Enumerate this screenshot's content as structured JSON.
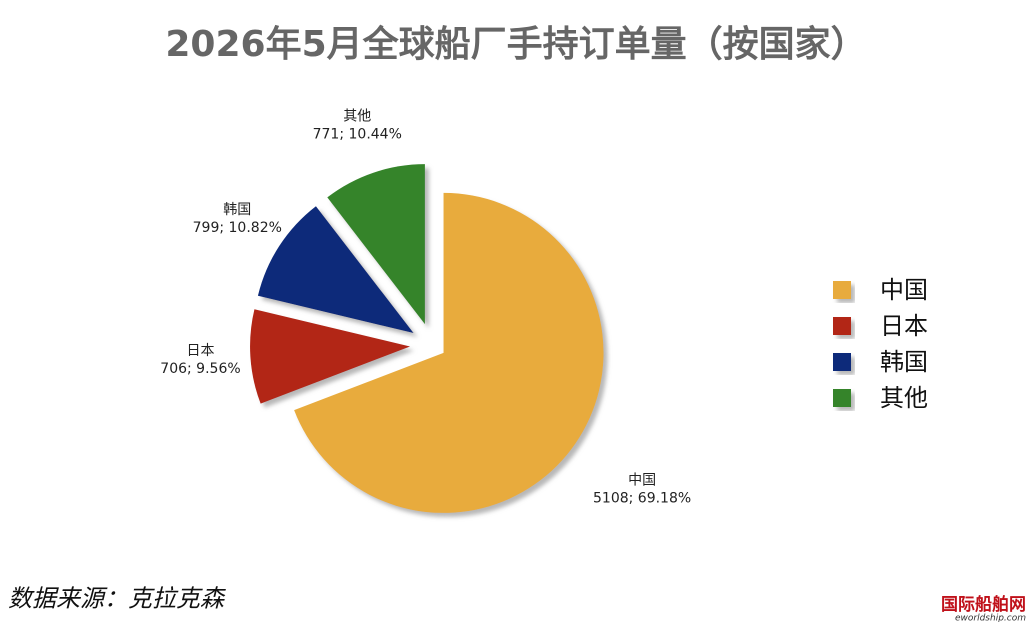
{
  "chart_data": {
    "type": "pie",
    "title": "2026年5月全球船厂手持订单量（按国家）",
    "categories": [
      "中国",
      "日本",
      "韩国",
      "其他"
    ],
    "values": [
      5108,
      706,
      799,
      771
    ],
    "value_labels": [
      "5108; 69.18%",
      "706; 9.56%",
      "799; 10.82%",
      "771; 10.44%"
    ],
    "colors": [
      "#e8ab3c",
      "#b22518",
      "#0a2a7a",
      "#35842a"
    ],
    "legend": "right",
    "source": "数据来源：克拉克森",
    "logo": {
      "name": "国际船舶网",
      "url": "eworldship.com"
    }
  }
}
